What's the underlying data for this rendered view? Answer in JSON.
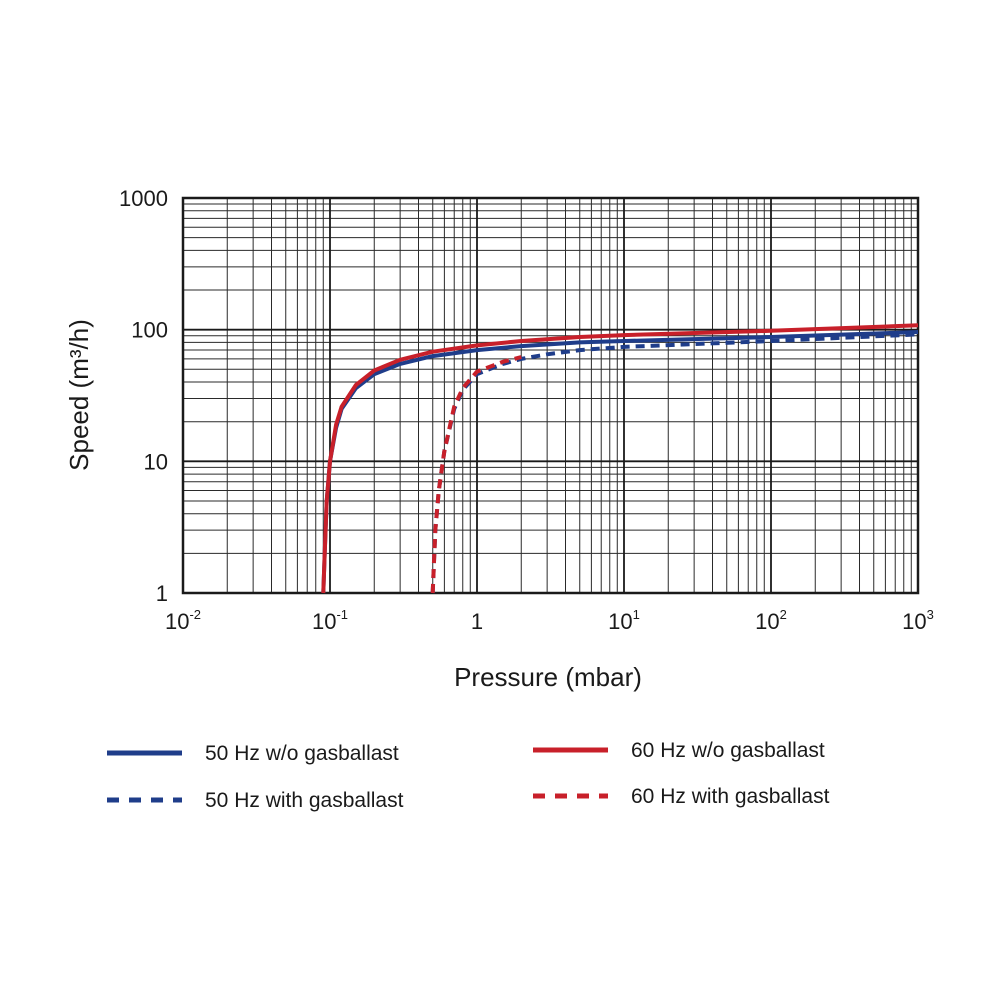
{
  "chart_data": {
    "type": "line",
    "title": "",
    "xlabel": "Pressure (mbar)",
    "ylabel": "Speed (m³/h)",
    "x_scale": "log",
    "y_scale": "log",
    "xlim": [
      0.01,
      1000
    ],
    "ylim": [
      1,
      1000
    ],
    "grid": true,
    "x_ticks": [
      {
        "value": 0.01,
        "base": "10",
        "exp": "-2"
      },
      {
        "value": 0.1,
        "base": "10",
        "exp": "-1"
      },
      {
        "value": 1,
        "base": "1",
        "exp": ""
      },
      {
        "value": 10,
        "base": "10",
        "exp": "1"
      },
      {
        "value": 100,
        "base": "10",
        "exp": "2"
      },
      {
        "value": 1000,
        "base": "10",
        "exp": "3"
      }
    ],
    "y_ticks": [
      {
        "value": 1,
        "label": "1"
      },
      {
        "value": 10,
        "label": "10"
      },
      {
        "value": 100,
        "label": "100"
      },
      {
        "value": 1000,
        "label": "1000"
      }
    ],
    "series": [
      {
        "name": "50 Hz w/o gasballast",
        "color": "#1f3d8a",
        "dash": "solid",
        "x": [
          0.09,
          0.092,
          0.095,
          0.1,
          0.11,
          0.12,
          0.15,
          0.2,
          0.3,
          0.5,
          1,
          2,
          5,
          10,
          100,
          1000
        ],
        "y": [
          1,
          2,
          5,
          10,
          18,
          25,
          36,
          46,
          55,
          63,
          70,
          75,
          80,
          82,
          88,
          96
        ]
      },
      {
        "name": "50 Hz with gasballast",
        "color": "#1f3d8a",
        "dash": "dashed",
        "x": [
          0.5,
          0.52,
          0.55,
          0.6,
          0.7,
          0.8,
          1,
          1.5,
          2,
          3,
          5,
          10,
          100,
          1000
        ],
        "y": [
          1,
          3,
          6,
          12,
          25,
          35,
          46,
          55,
          60,
          65,
          70,
          74,
          82,
          92
        ]
      },
      {
        "name": "60 Hz w/o gasballast",
        "color": "#c8202a",
        "dash": "solid",
        "x": [
          0.09,
          0.092,
          0.095,
          0.1,
          0.11,
          0.12,
          0.15,
          0.2,
          0.3,
          0.5,
          1,
          2,
          5,
          10,
          100,
          1000
        ],
        "y": [
          1,
          2,
          5,
          10,
          19,
          26,
          38,
          49,
          59,
          68,
          76,
          82,
          88,
          91,
          98,
          108
        ]
      },
      {
        "name": "60 Hz with gasballast",
        "color": "#c8202a",
        "dash": "dashed",
        "x": [
          0.5,
          0.52,
          0.55,
          0.6,
          0.7,
          0.8,
          1,
          1.5,
          2
        ],
        "y": [
          1,
          3,
          6,
          12,
          26,
          36,
          48,
          57,
          62
        ]
      }
    ]
  },
  "legend": {
    "items": [
      {
        "label": "50 Hz w/o gasballast",
        "color": "#1f3d8a",
        "dash": "solid"
      },
      {
        "label": "50 Hz with gasballast",
        "color": "#1f3d8a",
        "dash": "dashed"
      },
      {
        "label": "60 Hz w/o gasballast",
        "color": "#c8202a",
        "dash": "solid"
      },
      {
        "label": "60 Hz with gasballast",
        "color": "#c8202a",
        "dash": "dashed"
      }
    ]
  }
}
